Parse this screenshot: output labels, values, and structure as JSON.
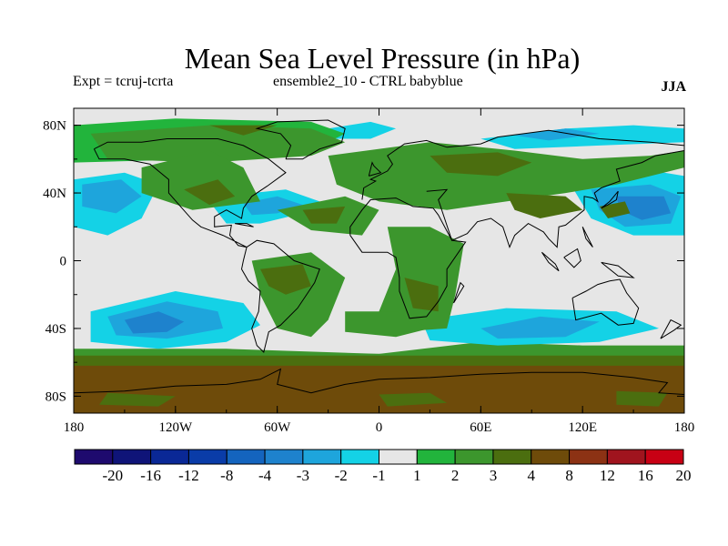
{
  "chart_data": {
    "type": "heatmap",
    "title": "Mean Sea Level Pressure (in hPa)",
    "subtitle_left": "Expt = tcruj-tcrta",
    "subtitle_center": "ensemble2_10 - CTRL babyblue",
    "subtitle_right": "JJA",
    "x_ticks": [
      "180",
      "120W",
      "60W",
      "0",
      "60E",
      "120E",
      "180"
    ],
    "x_tick_values": [
      -180,
      -120,
      -60,
      0,
      60,
      120,
      180
    ],
    "y_ticks": [
      "80N",
      "40N",
      "0",
      "40S",
      "80S"
    ],
    "y_tick_values": [
      80,
      40,
      0,
      -40,
      -80
    ],
    "xlim": [
      -180,
      180
    ],
    "ylim": [
      -90,
      90
    ],
    "colorbar": {
      "labels": [
        "-20",
        "-16",
        "-12",
        "-8",
        "-4",
        "-3",
        "-2",
        "-1",
        "1",
        "2",
        "3",
        "4",
        "8",
        "12",
        "16",
        "20"
      ],
      "colors": [
        "#1e0a6e",
        "#0f1478",
        "#0a2896",
        "#0a3ca8",
        "#1464be",
        "#1e82cd",
        "#1ea5dc",
        "#14d2e6",
        "#e6e6e6",
        "#22b43c",
        "#3c962d",
        "#4b6e0f",
        "#6e4b0a",
        "#8c3214",
        "#a0141e",
        "#c80014"
      ]
    },
    "regions": [
      {
        "value": 3,
        "poly": [
          [
            -180,
            -55
          ],
          [
            180,
            -55
          ],
          [
            180,
            -90
          ],
          [
            -180,
            -90
          ]
        ]
      },
      {
        "value": 4,
        "poly": [
          [
            -180,
            -62
          ],
          [
            180,
            -62
          ],
          [
            180,
            -90
          ],
          [
            -180,
            -90
          ]
        ]
      },
      {
        "value": 3,
        "poly": [
          [
            -160,
            -78
          ],
          [
            -120,
            -80
          ],
          [
            -130,
            -86
          ],
          [
            -165,
            -85
          ]
        ]
      },
      {
        "value": 3,
        "poly": [
          [
            0,
            -79
          ],
          [
            30,
            -78
          ],
          [
            40,
            -84
          ],
          [
            5,
            -86
          ]
        ]
      },
      {
        "value": 3,
        "poly": [
          [
            140,
            -77
          ],
          [
            170,
            -78
          ],
          [
            165,
            -86
          ],
          [
            140,
            -85
          ]
        ]
      },
      {
        "value": 2,
        "poly": [
          [
            -180,
            -52
          ],
          [
            -90,
            -52
          ],
          [
            0,
            -55
          ],
          [
            60,
            -48
          ],
          [
            120,
            -50
          ],
          [
            180,
            -50
          ],
          [
            180,
            -56
          ],
          [
            -180,
            -56
          ]
        ]
      },
      {
        "value": -1,
        "poly": [
          [
            -170,
            -30
          ],
          [
            -120,
            -18
          ],
          [
            -80,
            -25
          ],
          [
            -70,
            -38
          ],
          [
            -90,
            -48
          ],
          [
            -130,
            -52
          ],
          [
            -170,
            -48
          ]
        ]
      },
      {
        "value": -2,
        "poly": [
          [
            -160,
            -33
          ],
          [
            -125,
            -24
          ],
          [
            -95,
            -30
          ],
          [
            -92,
            -40
          ],
          [
            -125,
            -46
          ],
          [
            -155,
            -44
          ]
        ]
      },
      {
        "value": -3,
        "poly": [
          [
            -150,
            -35
          ],
          [
            -130,
            -30
          ],
          [
            -115,
            -36
          ],
          [
            -125,
            -42
          ],
          [
            -145,
            -43
          ]
        ]
      },
      {
        "value": -1,
        "poly": [
          [
            25,
            -35
          ],
          [
            75,
            -28
          ],
          [
            140,
            -30
          ],
          [
            165,
            -40
          ],
          [
            130,
            -48
          ],
          [
            70,
            -50
          ],
          [
            30,
            -47
          ]
        ]
      },
      {
        "value": -2,
        "poly": [
          [
            60,
            -40
          ],
          [
            95,
            -33
          ],
          [
            130,
            -36
          ],
          [
            110,
            -45
          ],
          [
            70,
            -46
          ]
        ]
      },
      {
        "value": -1,
        "poly": [
          [
            -180,
            48
          ],
          [
            -150,
            52
          ],
          [
            -130,
            45
          ],
          [
            -140,
            25
          ],
          [
            -160,
            15
          ],
          [
            -180,
            20
          ]
        ]
      },
      {
        "value": -2,
        "poly": [
          [
            -175,
            45
          ],
          [
            -152,
            48
          ],
          [
            -140,
            38
          ],
          [
            -155,
            28
          ],
          [
            -175,
            32
          ]
        ]
      },
      {
        "value": -1,
        "poly": [
          [
            110,
            50
          ],
          [
            150,
            55
          ],
          [
            180,
            50
          ],
          [
            180,
            15
          ],
          [
            150,
            15
          ],
          [
            125,
            25
          ]
        ]
      },
      {
        "value": -2,
        "poly": [
          [
            125,
            42
          ],
          [
            160,
            45
          ],
          [
            178,
            38
          ],
          [
            172,
            22
          ],
          [
            145,
            20
          ],
          [
            130,
            30
          ]
        ]
      },
      {
        "value": -3,
        "poly": [
          [
            140,
            38
          ],
          [
            168,
            38
          ],
          [
            172,
            28
          ],
          [
            155,
            24
          ],
          [
            142,
            30
          ]
        ]
      },
      {
        "value": -1,
        "poly": [
          [
            -100,
            35
          ],
          [
            -75,
            40
          ],
          [
            -55,
            42
          ],
          [
            -35,
            35
          ],
          [
            -45,
            28
          ],
          [
            -70,
            22
          ],
          [
            -90,
            22
          ]
        ]
      },
      {
        "value": -2,
        "poly": [
          [
            -80,
            34
          ],
          [
            -60,
            38
          ],
          [
            -45,
            33
          ],
          [
            -60,
            28
          ],
          [
            -75,
            27
          ]
        ]
      },
      {
        "value": -1,
        "poly": [
          [
            -30,
            78
          ],
          [
            -5,
            82
          ],
          [
            10,
            78
          ],
          [
            -5,
            72
          ],
          [
            -25,
            72
          ]
        ]
      },
      {
        "value": -1,
        "poly": [
          [
            60,
            72
          ],
          [
            110,
            78
          ],
          [
            150,
            80
          ],
          [
            180,
            78
          ],
          [
            180,
            70
          ],
          [
            130,
            68
          ],
          [
            80,
            66
          ]
        ]
      },
      {
        "value": -2,
        "poly": [
          [
            80,
            74
          ],
          [
            110,
            78
          ],
          [
            130,
            75
          ],
          [
            100,
            71
          ]
        ]
      },
      {
        "value": 1,
        "poly": [
          [
            -180,
            80
          ],
          [
            -120,
            84
          ],
          [
            -40,
            82
          ],
          [
            -20,
            75
          ],
          [
            -40,
            65
          ],
          [
            -100,
            60
          ],
          [
            -180,
            58
          ]
        ]
      },
      {
        "value": 2,
        "poly": [
          [
            -170,
            75
          ],
          [
            -100,
            80
          ],
          [
            -40,
            78
          ],
          [
            -20,
            70
          ],
          [
            -40,
            62
          ],
          [
            -100,
            58
          ],
          [
            -160,
            60
          ]
        ]
      },
      {
        "value": 2,
        "poly": [
          [
            -30,
            62
          ],
          [
            30,
            70
          ],
          [
            80,
            65
          ],
          [
            120,
            60
          ],
          [
            160,
            62
          ],
          [
            180,
            65
          ],
          [
            180,
            55
          ],
          [
            140,
            45
          ],
          [
            110,
            40
          ],
          [
            40,
            30
          ],
          [
            0,
            35
          ],
          [
            -25,
            45
          ]
        ]
      },
      {
        "value": 3,
        "poly": [
          [
            30,
            62
          ],
          [
            70,
            64
          ],
          [
            90,
            58
          ],
          [
            70,
            50
          ],
          [
            40,
            52
          ]
        ]
      },
      {
        "value": 3,
        "poly": [
          [
            -100,
            80
          ],
          [
            -60,
            80
          ],
          [
            -80,
            74
          ]
        ]
      },
      {
        "value": 2,
        "poly": [
          [
            -140,
            55
          ],
          [
            -100,
            65
          ],
          [
            -80,
            55
          ],
          [
            -70,
            35
          ],
          [
            -110,
            30
          ],
          [
            -140,
            40
          ]
        ]
      },
      {
        "value": 3,
        "poly": [
          [
            -115,
            42
          ],
          [
            -95,
            48
          ],
          [
            -85,
            38
          ],
          [
            -100,
            33
          ]
        ]
      },
      {
        "value": 2,
        "poly": [
          [
            -60,
            30
          ],
          [
            -20,
            38
          ],
          [
            0,
            30
          ],
          [
            -10,
            15
          ],
          [
            -40,
            18
          ]
        ]
      },
      {
        "value": 3,
        "poly": [
          [
            -45,
            30
          ],
          [
            -20,
            32
          ],
          [
            -25,
            22
          ],
          [
            -40,
            22
          ]
        ]
      },
      {
        "value": 2,
        "poly": [
          [
            5,
            20
          ],
          [
            30,
            20
          ],
          [
            50,
            10
          ],
          [
            45,
            -20
          ],
          [
            40,
            -40
          ],
          [
            10,
            -42
          ],
          [
            0,
            -30
          ],
          [
            10,
            -5
          ]
        ]
      },
      {
        "value": 3,
        "poly": [
          [
            15,
            -10
          ],
          [
            35,
            -15
          ],
          [
            35,
            -30
          ],
          [
            20,
            -28
          ]
        ]
      },
      {
        "value": 2,
        "poly": [
          [
            -75,
            0
          ],
          [
            -40,
            5
          ],
          [
            -20,
            -10
          ],
          [
            -30,
            -35
          ],
          [
            -40,
            -45
          ],
          [
            -60,
            -40
          ],
          [
            -70,
            -20
          ]
        ]
      },
      {
        "value": 3,
        "poly": [
          [
            -70,
            -5
          ],
          [
            -45,
            -2
          ],
          [
            -40,
            -15
          ],
          [
            -55,
            -20
          ],
          [
            -65,
            -15
          ]
        ]
      },
      {
        "value": 2,
        "poly": [
          [
            -20,
            -30
          ],
          [
            10,
            -30
          ],
          [
            30,
            -40
          ],
          [
            10,
            -45
          ],
          [
            -20,
            -42
          ]
        ]
      },
      {
        "value": 3,
        "poly": [
          [
            75,
            40
          ],
          [
            110,
            38
          ],
          [
            120,
            30
          ],
          [
            95,
            25
          ],
          [
            80,
            30
          ]
        ]
      },
      {
        "value": 3,
        "poly": [
          [
            130,
            32
          ],
          [
            145,
            35
          ],
          [
            148,
            28
          ],
          [
            135,
            25
          ]
        ]
      }
    ]
  }
}
